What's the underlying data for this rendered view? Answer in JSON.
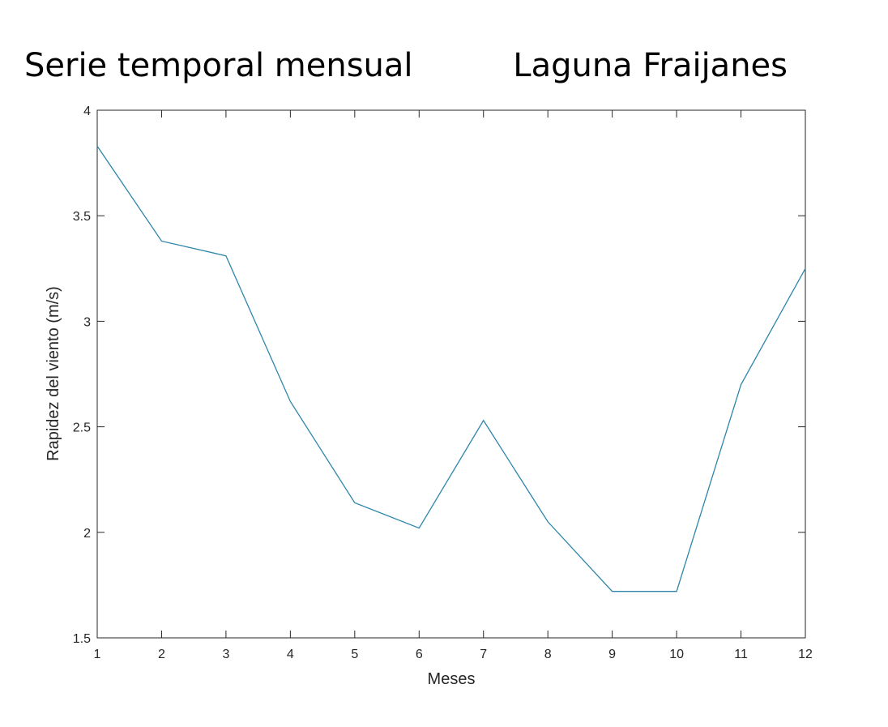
{
  "chart_data": {
    "type": "line",
    "title_left": "Serie temporal mensual",
    "title_right": "Laguna Fraijanes",
    "xlabel": "Meses",
    "ylabel": "Rapidez del viento (m/s)",
    "xlim": [
      1,
      12
    ],
    "ylim": [
      1.5,
      4
    ],
    "x_ticks": [
      "1",
      "2",
      "3",
      "4",
      "5",
      "6",
      "7",
      "8",
      "9",
      "10",
      "11",
      "12"
    ],
    "y_ticks": [
      "1.5",
      "2",
      "2.5",
      "3",
      "3.5",
      "4"
    ],
    "grid": false,
    "series": [
      {
        "x": [
          1,
          2,
          3,
          4,
          5,
          6,
          7,
          8,
          9,
          10,
          11,
          12
        ],
        "values": [
          3.83,
          3.38,
          3.31,
          2.62,
          2.14,
          2.02,
          2.53,
          2.05,
          1.72,
          1.72,
          2.7,
          3.25
        ],
        "color": "#2e86ab"
      }
    ],
    "axis_color": "#262626",
    "line_color": "#2e86ab"
  }
}
